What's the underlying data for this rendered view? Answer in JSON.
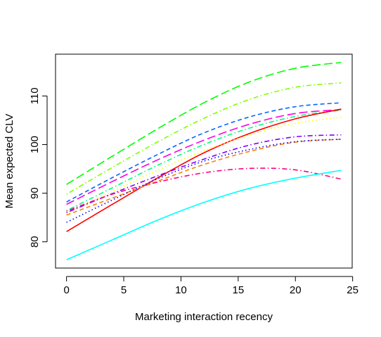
{
  "chart_data": {
    "type": "line",
    "title": "",
    "xlabel": "Marketing interaction recency",
    "ylabel": "Mean expected CLV",
    "xlim": [
      -0.96,
      24.96
    ],
    "ylim": [
      74.6,
      118.6
    ],
    "x_ticks": [
      "0",
      "5",
      "10",
      "15",
      "20",
      "25"
    ],
    "x_tick_values": [
      0,
      5,
      10,
      15,
      20,
      25
    ],
    "y_ticks": [
      "80",
      "90",
      "100",
      "110"
    ],
    "y_tick_values": [
      80,
      90,
      100,
      110
    ],
    "grid": false,
    "legend": "none",
    "series": [
      {
        "color": "#00FF00",
        "dash": "long-dash",
        "x": [
          0,
          4,
          8,
          12,
          16,
          20,
          24
        ],
        "y": [
          91.8,
          97.6,
          103.3,
          108.6,
          112.9,
          115.7,
          116.9
        ]
      },
      {
        "color": "#80FF00",
        "dash": "dot-dash",
        "x": [
          0,
          4,
          8,
          12,
          16,
          20,
          24
        ],
        "y": [
          89.8,
          95.3,
          100.6,
          105.4,
          109.3,
          111.8,
          112.7
        ]
      },
      {
        "color": "#0066FF",
        "dash": "dash",
        "x": [
          0,
          4,
          8,
          12,
          16,
          20,
          24
        ],
        "y": [
          88.2,
          93.2,
          98.0,
          102.4,
          105.7,
          107.8,
          108.6
        ]
      },
      {
        "color": "#FF00E6",
        "dash": "long-dash",
        "x": [
          0,
          4,
          8,
          12,
          16,
          20,
          24
        ],
        "y": [
          87.7,
          92.4,
          96.9,
          100.9,
          104.2,
          106.4,
          107.2
        ]
      },
      {
        "color": "#00FF80",
        "dash": "dot-dash",
        "x": [
          0,
          4,
          8,
          12,
          16,
          20,
          24
        ],
        "y": [
          86.4,
          91.1,
          95.8,
          100.0,
          103.4,
          105.8,
          107.1
        ]
      },
      {
        "color": "#FF0000",
        "dash": "solid",
        "x": [
          0,
          4,
          8,
          12,
          16,
          20,
          24
        ],
        "y": [
          82.1,
          87.7,
          93.2,
          98.3,
          102.3,
          105.3,
          107.3
        ]
      },
      {
        "color": "#FFFF00",
        "dash": "dot",
        "x": [
          0,
          4,
          8,
          12,
          16,
          20,
          24
        ],
        "y": [
          85.8,
          90.3,
          94.8,
          98.7,
          102.0,
          104.4,
          105.6
        ]
      },
      {
        "color": "#FF8000",
        "dash": "dash",
        "x": [
          0,
          4,
          8,
          12,
          16,
          20,
          24
        ],
        "y": [
          85.5,
          89.0,
          92.5,
          95.9,
          98.6,
          100.5,
          101.1
        ]
      },
      {
        "color": "#0000FF",
        "dash": "dot",
        "x": [
          0,
          4,
          8,
          12,
          16,
          20,
          24
        ],
        "y": [
          84.0,
          88.6,
          93.0,
          96.6,
          99.0,
          100.6,
          101.1
        ]
      },
      {
        "color": "#8000FF",
        "dash": "dot-dash",
        "x": [
          0,
          4,
          8,
          12,
          16,
          20,
          24
        ],
        "y": [
          86.0,
          89.9,
          93.6,
          97.0,
          99.9,
          101.6,
          102.0
        ]
      },
      {
        "color": "#FF0080",
        "dash": "dot-dash",
        "x": [
          0,
          4,
          8,
          12,
          16,
          20,
          24
        ],
        "y": [
          86.3,
          89.8,
          92.3,
          94.2,
          95.1,
          94.8,
          92.9
        ]
      },
      {
        "color": "#00FFFF",
        "dash": "solid",
        "x": [
          0,
          4,
          8,
          12,
          16,
          20,
          24
        ],
        "y": [
          76.3,
          80.4,
          84.5,
          88.1,
          91.0,
          93.1,
          94.7
        ]
      }
    ]
  }
}
